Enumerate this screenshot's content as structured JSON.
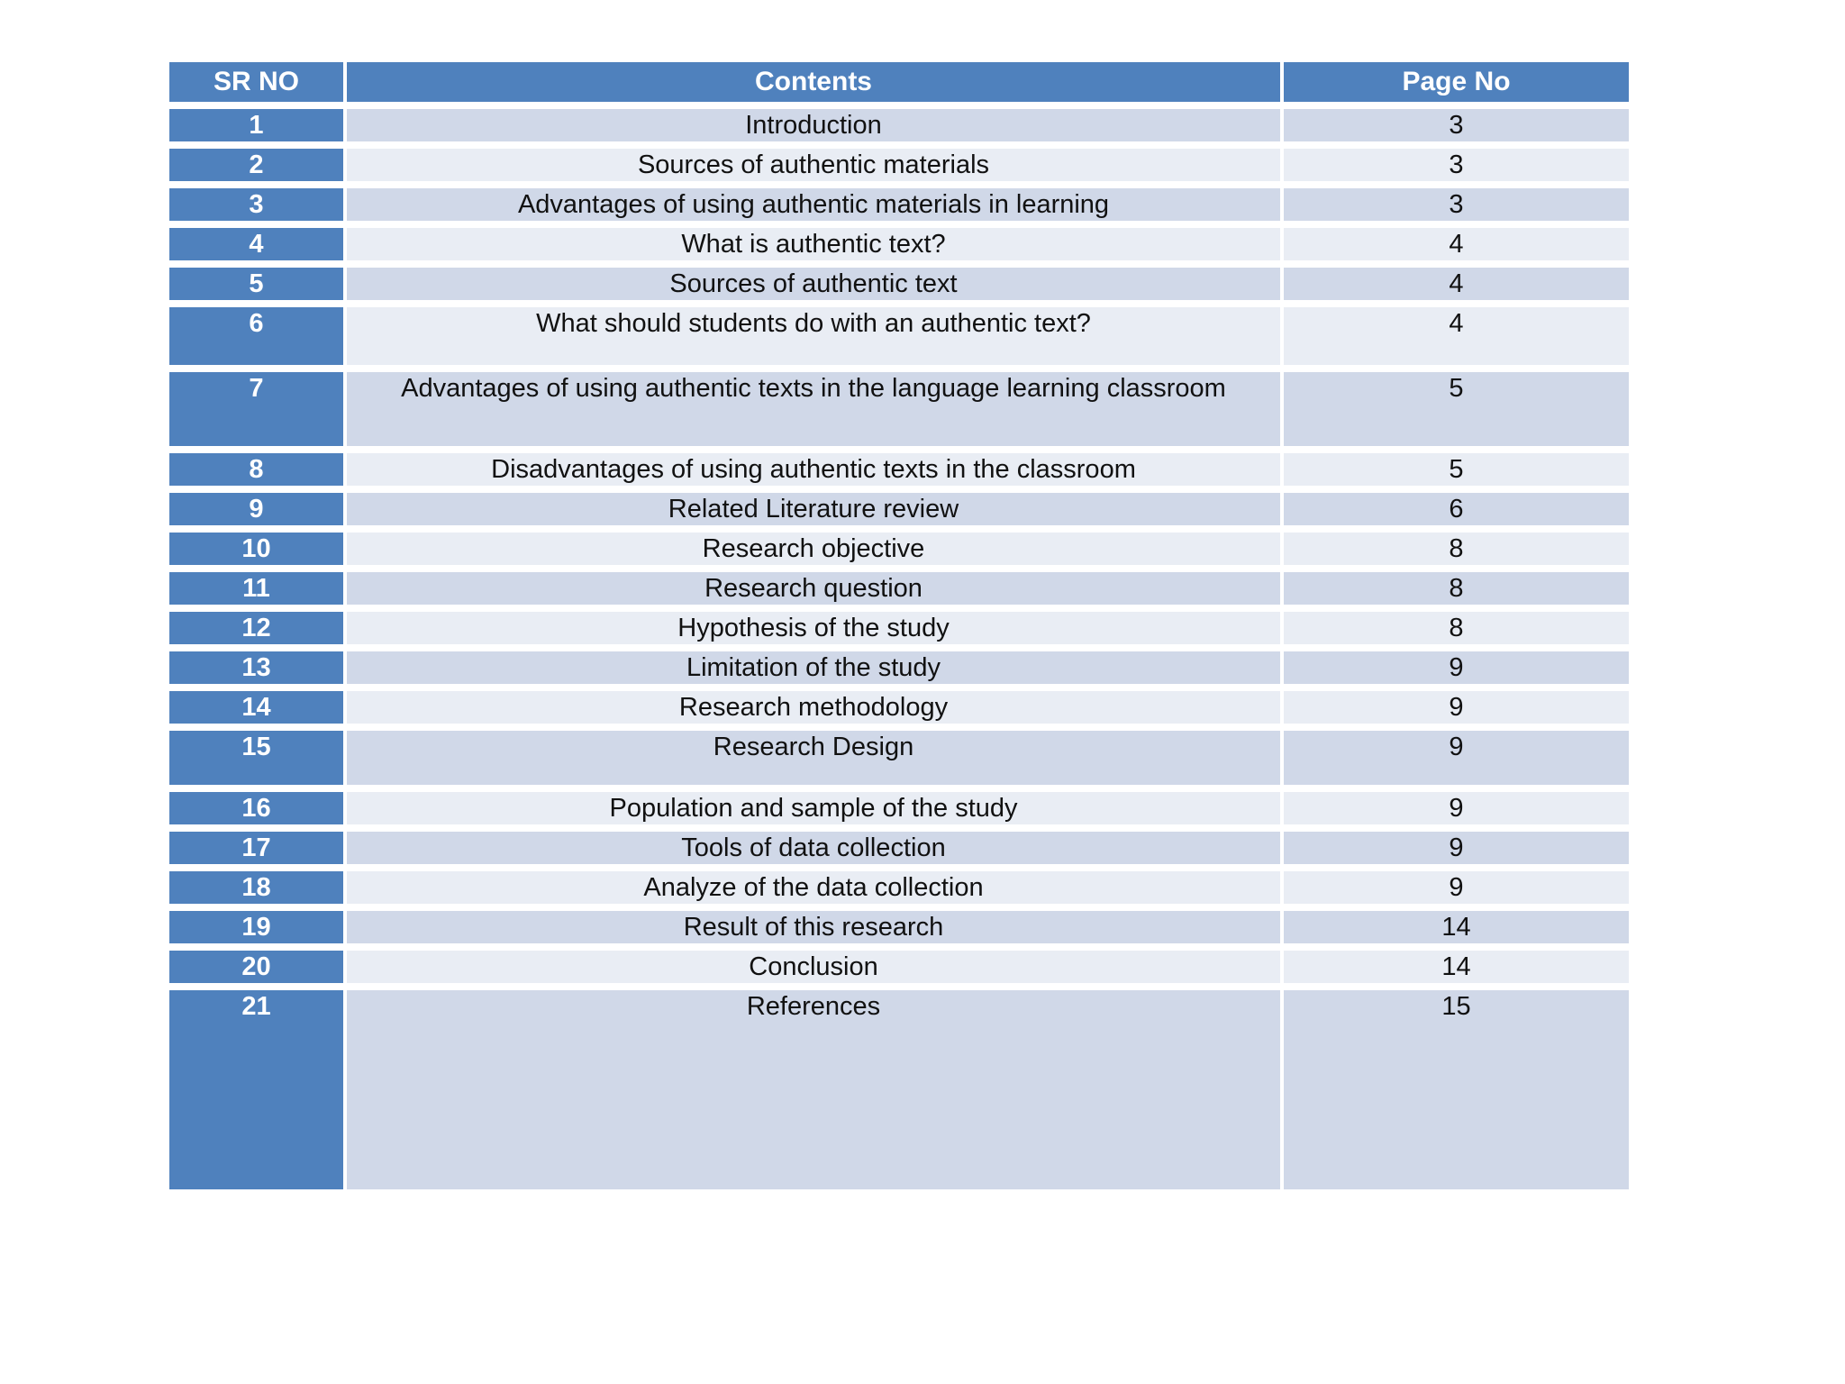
{
  "table": {
    "headers": [
      "SR NO",
      "Contents",
      "Page No"
    ],
    "rows": [
      {
        "sr": "1",
        "contents": "Introduction",
        "page": "3"
      },
      {
        "sr": "2",
        "contents": "Sources of authentic materials",
        "page": "3"
      },
      {
        "sr": "3",
        "contents": "Advantages of using authentic materials in learning",
        "page": "3"
      },
      {
        "sr": "4",
        "contents": "What is authentic text?",
        "page": "4"
      },
      {
        "sr": "5",
        "contents": "Sources of authentic text",
        "page": "4"
      },
      {
        "sr": "6",
        "contents": "What should students do with an authentic text?",
        "page": "4"
      },
      {
        "sr": "7",
        "contents": "Advantages of using authentic texts in the language learning classroom",
        "page": "5"
      },
      {
        "sr": "8",
        "contents": "Disadvantages of using authentic texts in the classroom",
        "page": "5"
      },
      {
        "sr": "9",
        "contents": "Related Literature review",
        "page": "6"
      },
      {
        "sr": "10",
        "contents": "Research objective",
        "page": "8"
      },
      {
        "sr": "11",
        "contents": "Research question",
        "page": "8"
      },
      {
        "sr": "12",
        "contents": "Hypothesis of the study",
        "page": "8"
      },
      {
        "sr": "13",
        "contents": "Limitation of the study",
        "page": "9"
      },
      {
        "sr": "14",
        "contents": "Research methodology",
        "page": "9"
      },
      {
        "sr": "15",
        "contents": "Research Design",
        "page": "9"
      },
      {
        "sr": "16",
        "contents": "Population and sample of the study",
        "page": "9"
      },
      {
        "sr": "17",
        "contents": "Tools of data collection",
        "page": "9"
      },
      {
        "sr": "18",
        "contents": "Analyze of the data collection",
        "page": "9"
      },
      {
        "sr": "19",
        "contents": "Result of this research",
        "page": "14"
      },
      {
        "sr": "20",
        "contents": "Conclusion",
        "page": "14"
      },
      {
        "sr": "21",
        "contents": "References",
        "page": "15"
      }
    ]
  },
  "colors": {
    "header_blue": "#4F81BD",
    "band_dark": "#D0D8E8",
    "band_light": "#E9EDF4",
    "header_text": "#FFFFFF",
    "body_text": "#111111",
    "page_background": "#FFFFFF"
  }
}
